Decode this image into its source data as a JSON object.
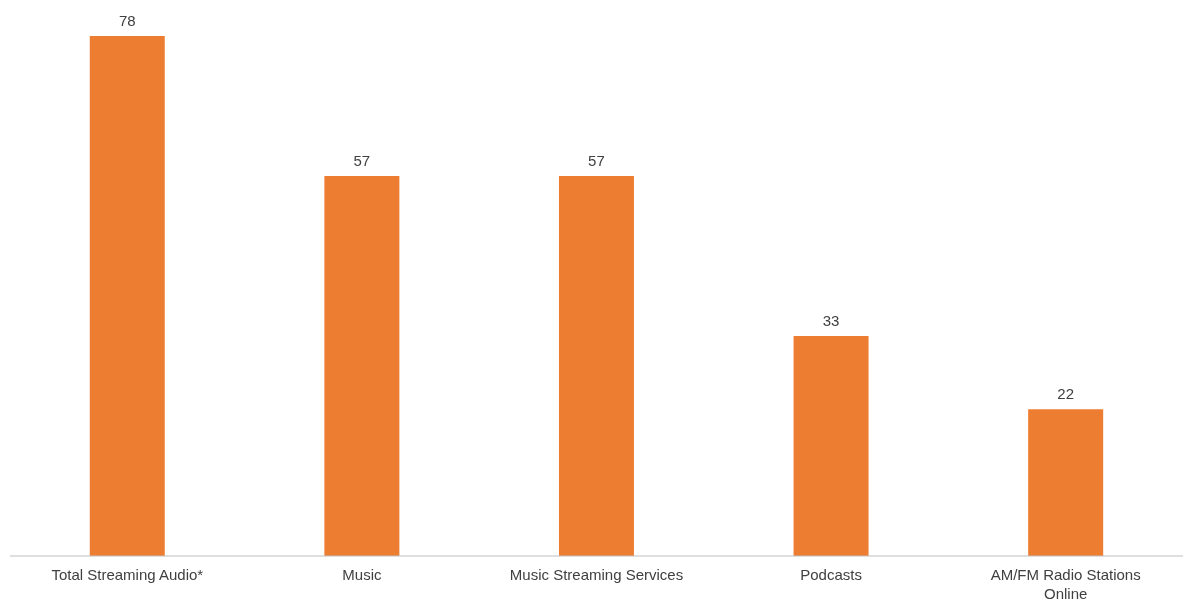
{
  "chart_data": {
    "type": "bar",
    "categories": [
      "Total Streaming Audio*",
      "Music",
      "Music Streaming Services",
      "Podcasts",
      "AM/FM Radio Stations Online"
    ],
    "values": [
      78,
      57,
      57,
      33,
      22
    ],
    "color": "#ed7d31",
    "data_labels": true,
    "grid": false,
    "legend": false
  }
}
